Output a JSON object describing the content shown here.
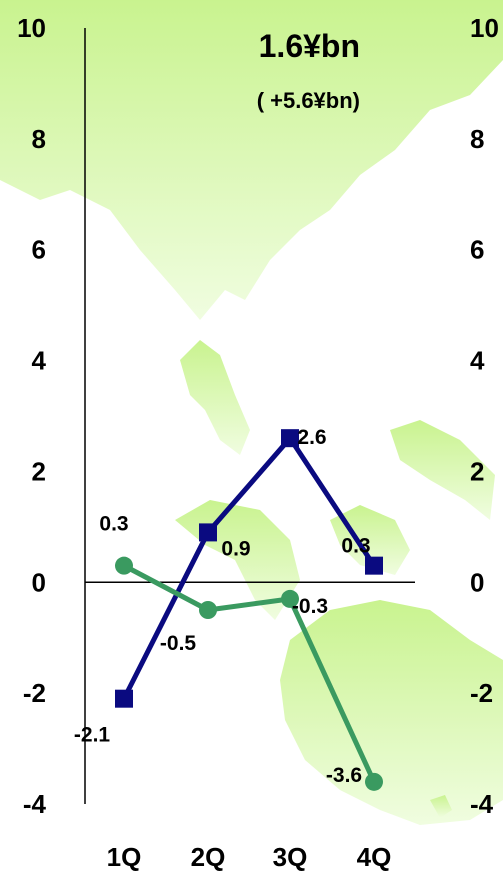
{
  "chart_data": {
    "type": "line",
    "categories": [
      "1Q",
      "2Q",
      "3Q",
      "4Q"
    ],
    "ylim": [
      -4,
      10
    ],
    "yticks": [
      "10",
      "8",
      "6",
      "4",
      "2",
      "0",
      "-2",
      "-4"
    ],
    "right_yticks": [
      "10",
      "8",
      "6",
      "4",
      "2",
      "0",
      "-2",
      "-4"
    ],
    "headline": "1.6¥bn",
    "subheadline": "( +5.6¥bn)",
    "grid": false,
    "series": [
      {
        "values": [
          -2.1,
          0.9,
          2.6,
          0.3
        ],
        "labels": [
          "-2.1",
          "0.9",
          "2.6",
          "0.3"
        ],
        "color": "#0a0a80",
        "marker": "square"
      },
      {
        "values": [
          0.3,
          -0.5,
          -0.3,
          -3.6
        ],
        "labels": [
          "0.3",
          "-0.5",
          "-0.3",
          "-3.6"
        ],
        "color": "#3a9a60",
        "marker": "circle"
      }
    ],
    "colors": {
      "background": "#ffffff",
      "map_land": "#d4f7a8",
      "axis": "#000000"
    }
  }
}
